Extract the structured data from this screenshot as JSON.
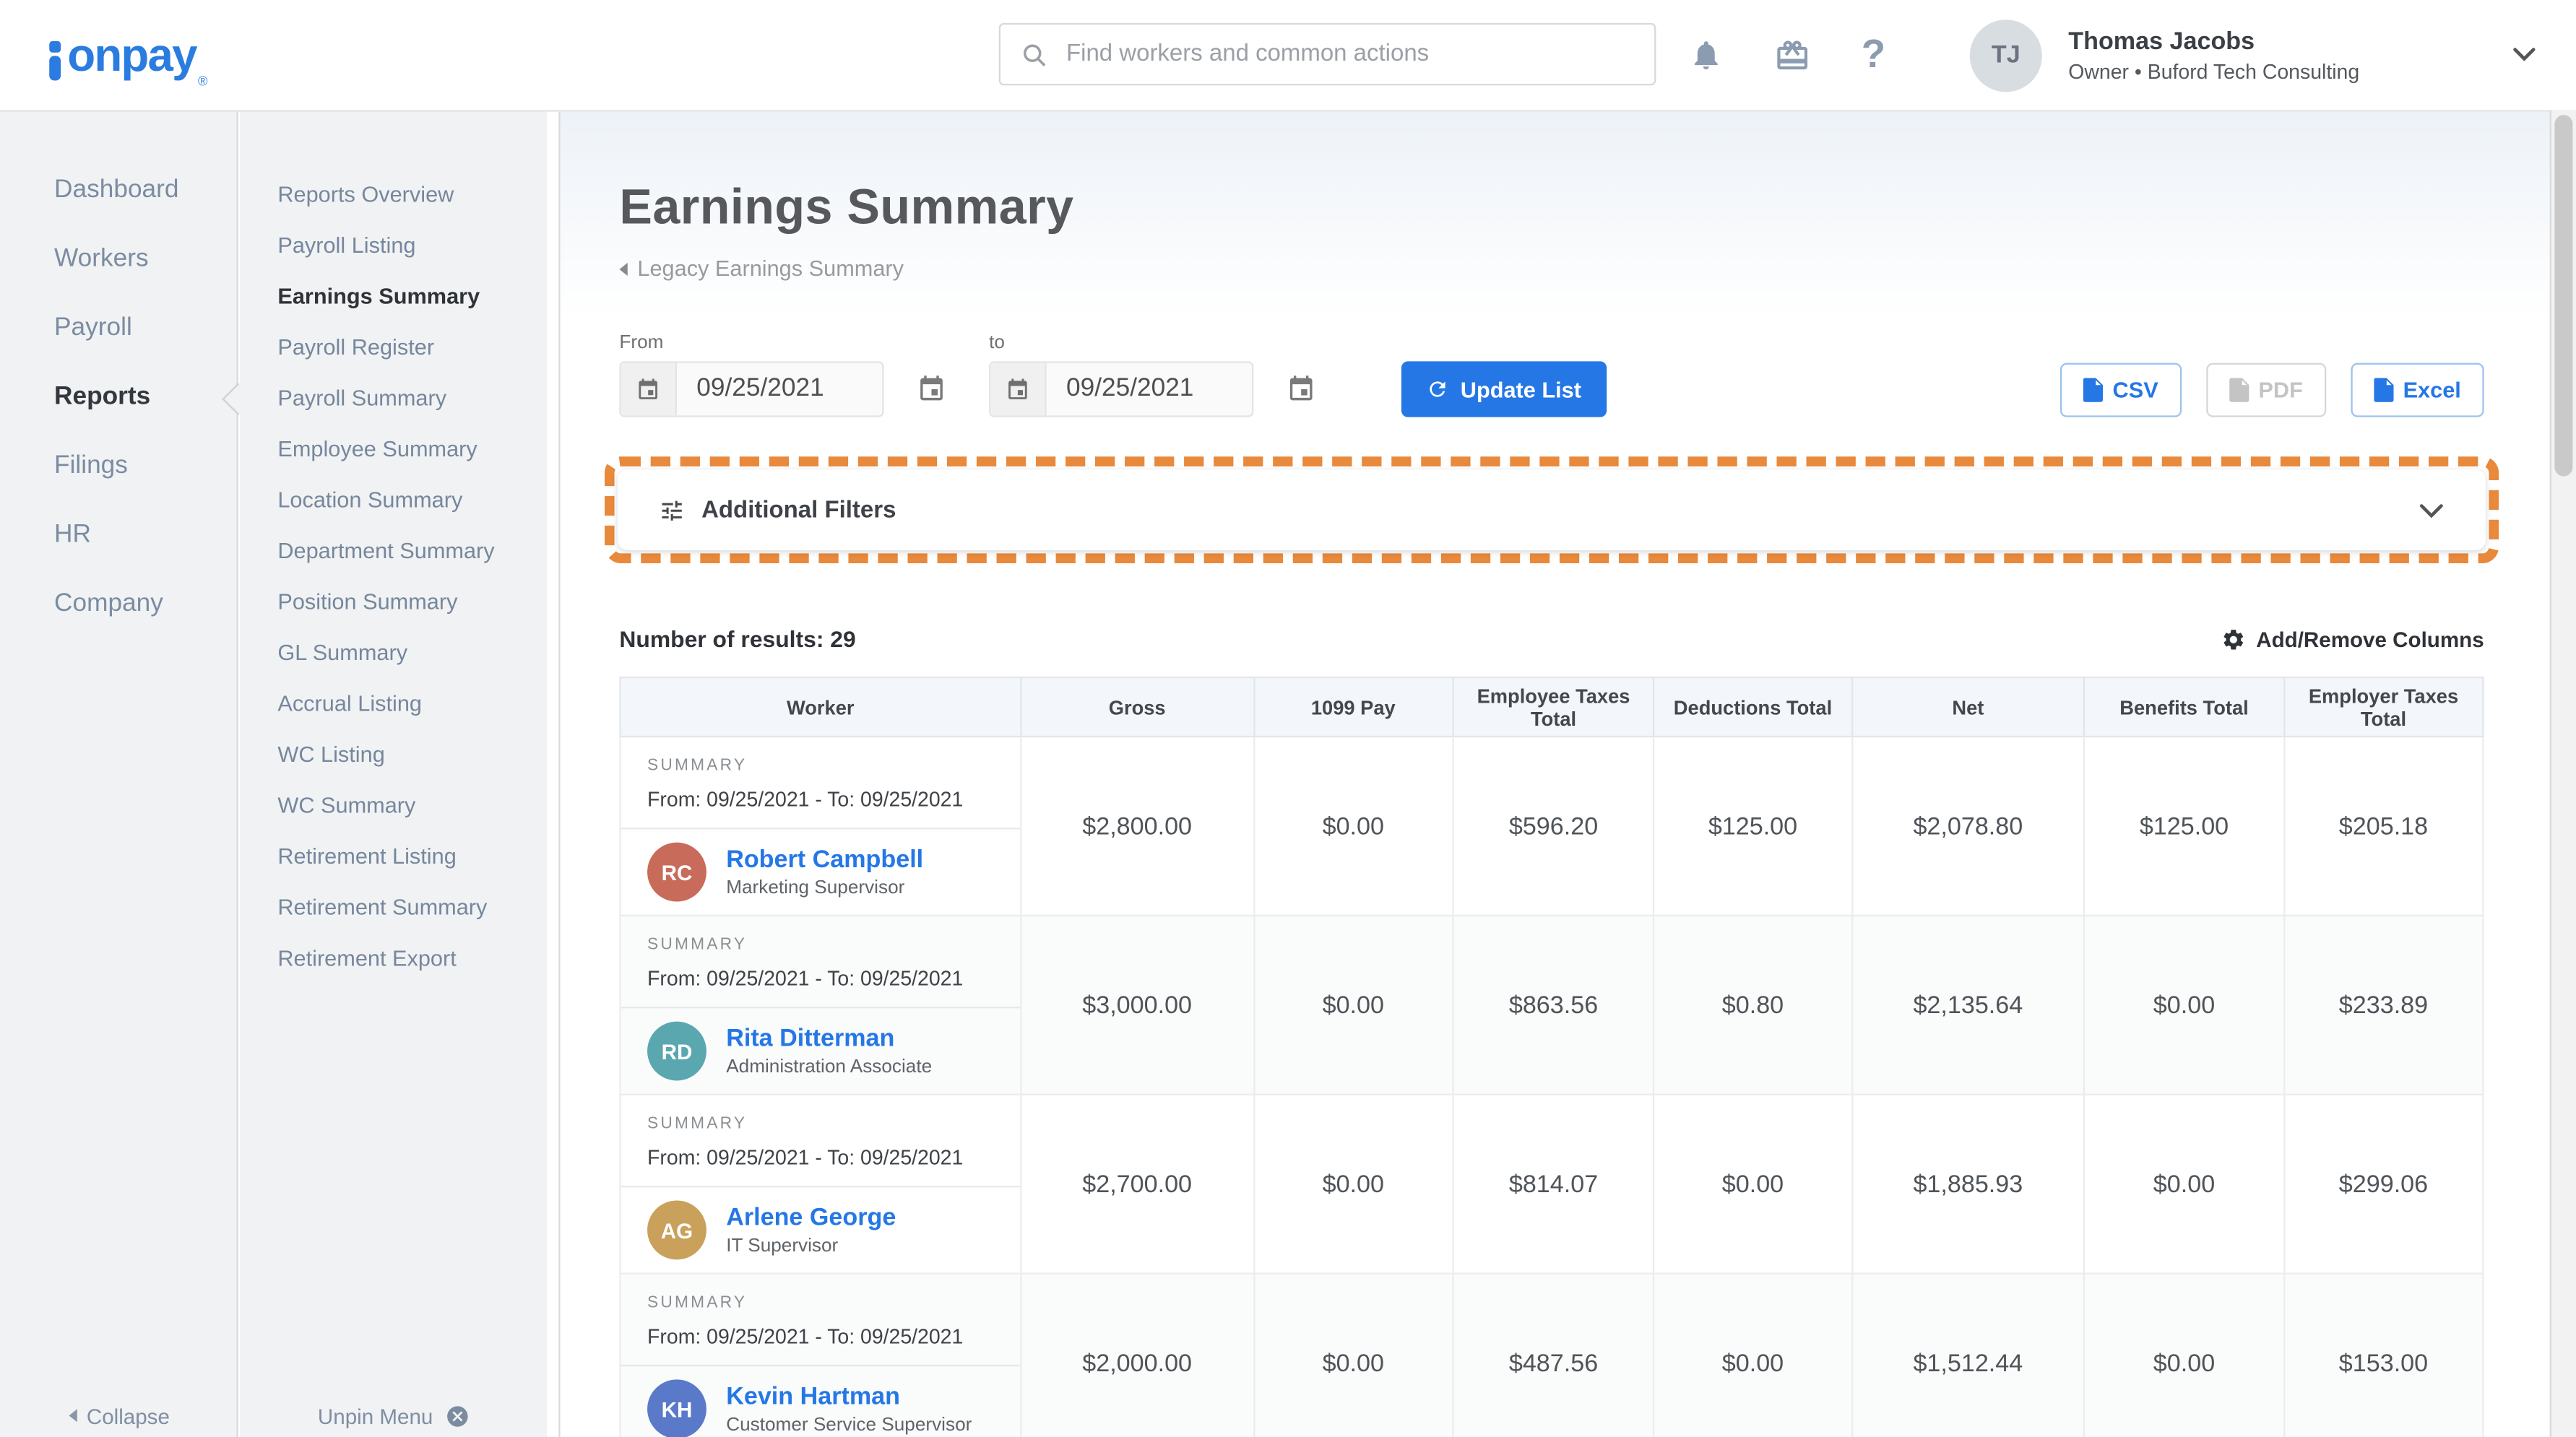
{
  "colors": {
    "brand_blue": "#2b7ce0",
    "accent_blue": "#2577e6",
    "link_blue": "#2577e6",
    "annotation_orange": "#e8893c",
    "sidebar_bg": "#f1f2f3",
    "table_header_bg": "#f3f7fb"
  },
  "header": {
    "logo_text": "onpay",
    "logo_reg": "®",
    "search_placeholder": "Find workers and common actions",
    "user": {
      "name": "Thomas Jacobs",
      "role_company": "Owner • Buford Tech Consulting",
      "initials": "TJ"
    }
  },
  "sidebar": {
    "items": [
      {
        "label": "Dashboard",
        "active": false
      },
      {
        "label": "Workers",
        "active": false
      },
      {
        "label": "Payroll",
        "active": false
      },
      {
        "label": "Reports",
        "active": true
      },
      {
        "label": "Filings",
        "active": false
      },
      {
        "label": "HR",
        "active": false
      },
      {
        "label": "Company",
        "active": false
      }
    ],
    "collapse_label": "Collapse"
  },
  "reports_menu": {
    "items": [
      {
        "label": "Reports Overview",
        "active": false
      },
      {
        "label": "Payroll Listing",
        "active": false
      },
      {
        "label": "Earnings Summary",
        "active": true
      },
      {
        "label": "Payroll Register",
        "active": false
      },
      {
        "label": "Payroll Summary",
        "active": false
      },
      {
        "label": "Employee Summary",
        "active": false
      },
      {
        "label": "Location Summary",
        "active": false
      },
      {
        "label": "Department Summary",
        "active": false
      },
      {
        "label": "Position Summary",
        "active": false
      },
      {
        "label": "GL Summary",
        "active": false
      },
      {
        "label": "Accrual Listing",
        "active": false
      },
      {
        "label": "WC Listing",
        "active": false
      },
      {
        "label": "WC Summary",
        "active": false
      },
      {
        "label": "Retirement Listing",
        "active": false
      },
      {
        "label": "Retirement Summary",
        "active": false
      },
      {
        "label": "Retirement Export",
        "active": false
      }
    ],
    "unpin_label": "Unpin Menu"
  },
  "main": {
    "title": "Earnings Summary",
    "back_link": "Legacy Earnings Summary",
    "filters": {
      "from_label": "From",
      "to_label": "to",
      "from_value": "09/25/2021",
      "to_value": "09/25/2021",
      "update_button": "Update List"
    },
    "export_buttons": [
      {
        "label": "CSV",
        "enabled": true
      },
      {
        "label": "PDF",
        "enabled": false
      },
      {
        "label": "Excel",
        "enabled": true
      }
    ],
    "additional_filters_label": "Additional Filters",
    "results_label": "Number of results: 29",
    "add_remove_columns_label": "Add/Remove Columns",
    "table": {
      "columns": [
        "Worker",
        "Gross",
        "1099 Pay",
        "Employee Taxes Total",
        "Deductions Total",
        "Net",
        "Benefits Total",
        "Employer Taxes Total"
      ],
      "column_widths": [
        "21.5%",
        "12.5%",
        "10.7%",
        "10.8%",
        "10.6%",
        "12.5%",
        "10.7%",
        "10.7%"
      ],
      "rows": [
        {
          "summary_label": "SUMMARY",
          "range": "From: 09/25/2021 - To: 09/25/2021",
          "name": "Robert Campbell",
          "title": "Marketing Supervisor",
          "initials": "RC",
          "avatar_color": "#c96b5a",
          "values": [
            "$2,800.00",
            "$0.00",
            "$596.20",
            "$125.00",
            "$2,078.80",
            "$125.00",
            "$205.18"
          ]
        },
        {
          "summary_label": "SUMMARY",
          "range": "From: 09/25/2021 - To: 09/25/2021",
          "name": "Rita Ditterman",
          "title": "Administration Associate",
          "initials": "RD",
          "avatar_color": "#5aa7b0",
          "values": [
            "$3,000.00",
            "$0.00",
            "$863.56",
            "$0.80",
            "$2,135.64",
            "$0.00",
            "$233.89"
          ]
        },
        {
          "summary_label": "SUMMARY",
          "range": "From: 09/25/2021 - To: 09/25/2021",
          "name": "Arlene George",
          "title": "IT Supervisor",
          "initials": "AG",
          "avatar_color": "#c9a15a",
          "values": [
            "$2,700.00",
            "$0.00",
            "$814.07",
            "$0.00",
            "$1,885.93",
            "$0.00",
            "$299.06"
          ]
        },
        {
          "summary_label": "SUMMARY",
          "range": "From: 09/25/2021 - To: 09/25/2021",
          "name": "Kevin Hartman",
          "title": "Customer Service Supervisor",
          "initials": "KH",
          "avatar_color": "#5a7ac9",
          "values": [
            "$2,000.00",
            "$0.00",
            "$487.56",
            "$0.00",
            "$1,512.44",
            "$0.00",
            "$153.00"
          ]
        }
      ]
    }
  }
}
